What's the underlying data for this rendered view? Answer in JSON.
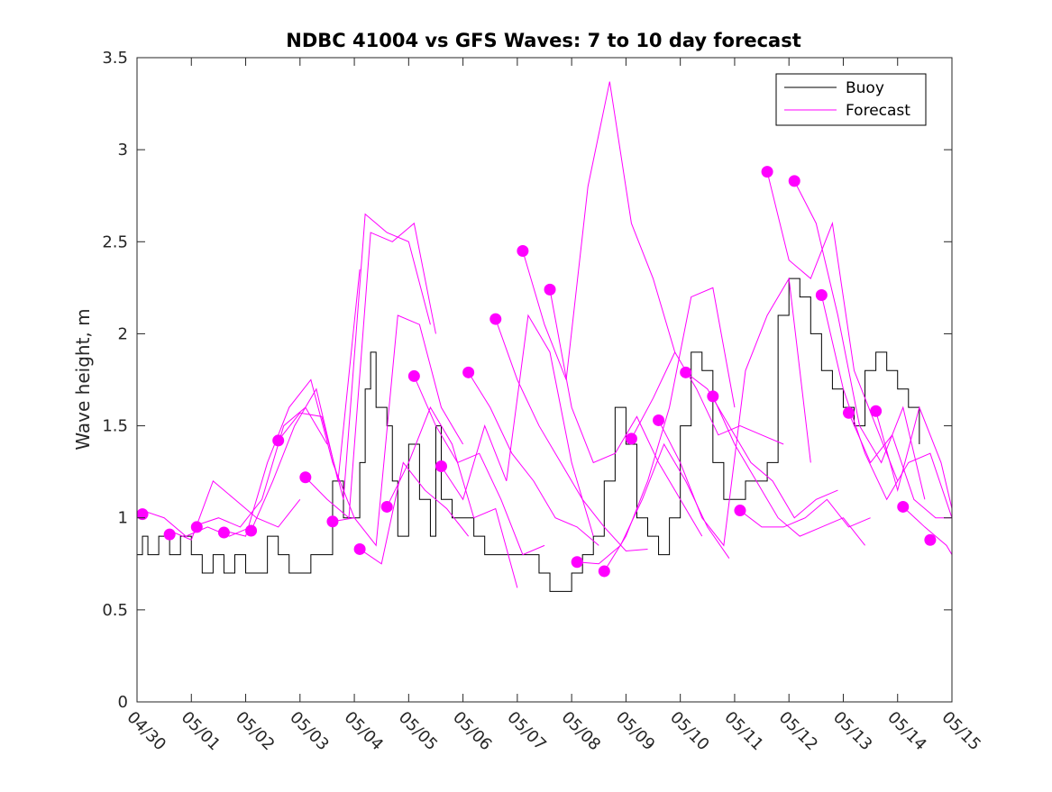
{
  "chart_data": {
    "type": "line",
    "title": "NDBC 41004 vs GFS Waves: 7 to 10 day forecast",
    "xlabel": "",
    "ylabel": "Wave height, m",
    "xlim": [
      0,
      15
    ],
    "ylim": [
      0,
      3.5
    ],
    "x_tick_labels": [
      "04/30",
      "05/01",
      "05/02",
      "05/03",
      "05/04",
      "05/05",
      "05/06",
      "05/07",
      "05/08",
      "05/09",
      "05/10",
      "05/11",
      "05/12",
      "05/13",
      "05/14",
      "05/15"
    ],
    "y_ticks": [
      "0",
      "0.5",
      "1",
      "1.5",
      "2",
      "2.5",
      "3",
      "3.5"
    ],
    "grid": false,
    "legend_position": "top-right",
    "colors": {
      "buoy": "#000000",
      "forecast": "#ff00ff",
      "axis": "#262626"
    },
    "series": [
      {
        "name": "Buoy",
        "values_note": "hourly-like observations",
        "x": [
          0,
          0.1,
          0.2,
          0.4,
          0.6,
          0.8,
          1.0,
          1.2,
          1.4,
          1.6,
          1.8,
          2.0,
          2.2,
          2.4,
          2.6,
          2.8,
          3.0,
          3.2,
          3.4,
          3.6,
          3.8,
          4.0,
          4.1,
          4.2,
          4.3,
          4.4,
          4.6,
          4.7,
          4.8,
          5.0,
          5.2,
          5.4,
          5.5,
          5.6,
          5.8,
          6.0,
          6.2,
          6.4,
          6.6,
          6.8,
          7.0,
          7.2,
          7.4,
          7.6,
          7.8,
          8.0,
          8.2,
          8.4,
          8.6,
          8.8,
          9.0,
          9.2,
          9.4,
          9.6,
          9.8,
          10.0,
          10.2,
          10.4,
          10.6,
          10.8,
          11.0,
          11.2,
          11.4,
          11.6,
          11.8,
          12.0,
          12.2,
          12.4,
          12.6,
          12.8,
          13.0,
          13.2,
          13.4,
          13.6,
          13.8,
          14.0,
          14.2,
          14.4
        ],
        "y": [
          0.8,
          0.9,
          0.8,
          0.9,
          0.8,
          0.9,
          0.8,
          0.7,
          0.8,
          0.7,
          0.8,
          0.7,
          0.7,
          0.9,
          0.8,
          0.7,
          0.7,
          0.8,
          0.8,
          1.2,
          1.0,
          1.0,
          1.3,
          1.7,
          1.9,
          1.6,
          1.5,
          1.2,
          0.9,
          1.4,
          1.1,
          0.9,
          1.5,
          1.1,
          1.0,
          1.0,
          0.9,
          0.8,
          0.8,
          0.8,
          0.8,
          0.8,
          0.7,
          0.6,
          0.6,
          0.7,
          0.8,
          0.9,
          1.2,
          1.6,
          1.4,
          1.0,
          0.9,
          0.8,
          1.0,
          1.5,
          1.9,
          1.8,
          1.3,
          1.1,
          1.1,
          1.2,
          1.2,
          1.3,
          2.1,
          2.3,
          2.2,
          2.0,
          1.8,
          1.7,
          1.6,
          1.5,
          1.8,
          1.9,
          1.8,
          1.7,
          1.6,
          1.4
        ]
      },
      {
        "name": "Forecast",
        "lines": [
          {
            "x": [
              0.1,
              0.5,
              0.9,
              1.3,
              1.7,
              2.1
            ],
            "y": [
              1.04,
              1.0,
              0.9,
              0.95,
              0.9,
              0.95
            ]
          },
          {
            "x": [
              0.6,
              1.0,
              1.4,
              1.8,
              2.2,
              2.6,
              3.0
            ],
            "y": [
              0.93,
              0.88,
              1.2,
              1.1,
              1.0,
              0.95,
              1.1
            ]
          },
          {
            "x": [
              1.1,
              1.5,
              1.9,
              2.3,
              2.7,
              3.1,
              3.5
            ],
            "y": [
              0.96,
              1.0,
              0.95,
              1.1,
              1.5,
              1.6,
              1.4
            ]
          },
          {
            "x": [
              1.6,
              2.0,
              2.4,
              2.8,
              3.2,
              3.6,
              4.0
            ],
            "y": [
              0.93,
              0.9,
              1.3,
              1.6,
              1.75,
              1.3,
              1.0
            ]
          },
          {
            "x": [
              2.1,
              2.5,
              2.9,
              3.3,
              3.7,
              4.1
            ],
            "y": [
              0.93,
              1.2,
              1.5,
              1.7,
              1.2,
              2.35
            ]
          },
          {
            "x": [
              2.6,
              3.0,
              3.4,
              3.8,
              4.2,
              4.6,
              5.0,
              5.4
            ],
            "y": [
              1.42,
              1.57,
              1.55,
              1.1,
              2.65,
              2.55,
              2.5,
              2.05
            ]
          },
          {
            "x": [
              3.1,
              3.5,
              3.9,
              4.3,
              4.7,
              5.1,
              5.5
            ],
            "y": [
              1.22,
              1.1,
              1.0,
              2.55,
              2.5,
              2.6,
              2.0
            ]
          },
          {
            "x": [
              3.6,
              4.0,
              4.4,
              4.8,
              5.2,
              5.6,
              6.0
            ],
            "y": [
              0.98,
              1.0,
              0.85,
              2.1,
              2.05,
              1.6,
              1.4
            ]
          },
          {
            "x": [
              4.1,
              4.5,
              4.9,
              5.3,
              5.7,
              6.1
            ],
            "y": [
              0.83,
              0.75,
              1.3,
              1.15,
              1.05,
              0.9
            ]
          },
          {
            "x": [
              4.6,
              5.0,
              5.4,
              5.8,
              6.2,
              6.6,
              7.0
            ],
            "y": [
              1.06,
              1.3,
              1.6,
              1.4,
              1.0,
              1.05,
              0.62
            ]
          },
          {
            "x": [
              5.1,
              5.5,
              5.9,
              6.3,
              6.7,
              7.1,
              7.5
            ],
            "y": [
              1.77,
              1.5,
              1.3,
              1.35,
              1.1,
              0.8,
              0.85
            ]
          },
          {
            "x": [
              5.6,
              6.0,
              6.4,
              6.8,
              7.2,
              7.6,
              8.0,
              8.4
            ],
            "y": [
              1.28,
              1.1,
              1.5,
              1.2,
              2.1,
              1.9,
              1.3,
              0.9
            ]
          },
          {
            "x": [
              6.1,
              6.5,
              6.9,
              7.3,
              7.7,
              8.1,
              8.5
            ],
            "y": [
              1.79,
              1.6,
              1.35,
              1.2,
              1.0,
              0.95,
              0.85
            ]
          },
          {
            "x": [
              6.6,
              7.0,
              7.4,
              7.8,
              8.2,
              8.6,
              9.0,
              9.4
            ],
            "y": [
              2.08,
              1.75,
              1.5,
              1.3,
              1.1,
              0.95,
              0.82,
              0.83
            ]
          },
          {
            "x": [
              7.1,
              7.5,
              7.9,
              8.3,
              8.7,
              9.1,
              9.5,
              9.9
            ],
            "y": [
              2.45,
              2.05,
              1.75,
              2.8,
              3.37,
              2.6,
              2.3,
              1.9
            ]
          },
          {
            "x": [
              7.6,
              8.0,
              8.4,
              8.8,
              9.2,
              9.6,
              10.0,
              10.4
            ],
            "y": [
              2.24,
              1.6,
              1.3,
              1.35,
              1.55,
              1.3,
              1.1,
              0.9
            ]
          },
          {
            "x": [
              8.1,
              8.5,
              8.9,
              9.3,
              9.7,
              10.1,
              10.5,
              10.9
            ],
            "y": [
              0.76,
              0.75,
              0.85,
              1.1,
              1.4,
              1.2,
              0.95,
              0.78
            ]
          },
          {
            "x": [
              8.6,
              9.0,
              9.4,
              9.8,
              10.2,
              10.6,
              11.0
            ],
            "y": [
              0.71,
              0.9,
              1.2,
              1.6,
              2.2,
              2.25,
              1.6
            ]
          },
          {
            "x": [
              9.1,
              9.5,
              9.9,
              10.3,
              10.7,
              11.1,
              11.5,
              11.9
            ],
            "y": [
              1.43,
              1.65,
              1.9,
              1.7,
              1.45,
              1.5,
              1.45,
              1.4
            ]
          },
          {
            "x": [
              9.6,
              10.0,
              10.4,
              10.8,
              11.2,
              11.6,
              12.0,
              12.4
            ],
            "y": [
              1.53,
              1.3,
              1.0,
              0.85,
              1.8,
              2.1,
              2.3,
              1.3
            ]
          },
          {
            "x": [
              10.1,
              10.5,
              10.9,
              11.3,
              11.7,
              12.1,
              12.5,
              12.9
            ],
            "y": [
              1.79,
              1.7,
              1.5,
              1.3,
              1.2,
              1.0,
              1.1,
              1.15
            ]
          },
          {
            "x": [
              10.6,
              11.0,
              11.4,
              11.8,
              12.2,
              12.6,
              13.0,
              13.4
            ],
            "y": [
              1.66,
              1.4,
              1.2,
              1.0,
              0.9,
              0.95,
              1.0,
              0.85
            ]
          },
          {
            "x": [
              11.1,
              11.5,
              11.9,
              12.3,
              12.7,
              13.1,
              13.5
            ],
            "y": [
              1.04,
              0.95,
              0.95,
              1.0,
              1.1,
              0.95,
              1.0
            ]
          },
          {
            "x": [
              11.6,
              12.0,
              12.4,
              12.8,
              13.2,
              13.6,
              14.0
            ],
            "y": [
              2.88,
              2.4,
              2.3,
              2.6,
              1.8,
              1.5,
              1.2
            ]
          },
          {
            "x": [
              12.1,
              12.5,
              12.9,
              13.3,
              13.7,
              14.1,
              14.5
            ],
            "y": [
              2.83,
              2.6,
              2.1,
              1.5,
              1.3,
              1.6,
              1.1
            ]
          },
          {
            "x": [
              12.6,
              13.0,
              13.4,
              13.8,
              14.2,
              14.6,
              15.0
            ],
            "y": [
              2.21,
              1.7,
              1.35,
              1.1,
              1.3,
              1.35,
              1.0
            ]
          },
          {
            "x": [
              13.1,
              13.5,
              13.9,
              14.3,
              14.7,
              15.0
            ],
            "y": [
              1.57,
              1.3,
              1.45,
              1.1,
              1.0,
              1.0
            ]
          },
          {
            "x": [
              13.6,
              14.0,
              14.4,
              14.8,
              15.0
            ],
            "y": [
              1.58,
              1.15,
              1.6,
              1.3,
              1.05
            ]
          },
          {
            "x": [
              14.1,
              14.5,
              14.9,
              15.0
            ],
            "y": [
              1.06,
              0.95,
              0.85,
              0.8
            ]
          }
        ],
        "initial_points": {
          "x": [
            0.1,
            0.6,
            1.1,
            1.6,
            2.1,
            2.6,
            3.1,
            3.6,
            4.1,
            4.6,
            5.1,
            5.6,
            6.1,
            6.6,
            7.1,
            7.6,
            8.1,
            8.6,
            9.1,
            9.6,
            10.1,
            10.6,
            11.1,
            11.6,
            12.1,
            12.6,
            13.1,
            13.6,
            14.1,
            14.6
          ],
          "y": [
            1.02,
            0.91,
            0.95,
            0.92,
            0.93,
            1.42,
            1.22,
            0.98,
            0.83,
            1.06,
            1.77,
            1.28,
            1.79,
            2.08,
            2.45,
            2.24,
            0.76,
            0.71,
            1.43,
            1.53,
            1.79,
            1.66,
            1.04,
            2.88,
            2.83,
            2.21,
            1.57,
            1.58,
            1.06,
            0.88
          ]
        }
      }
    ]
  }
}
